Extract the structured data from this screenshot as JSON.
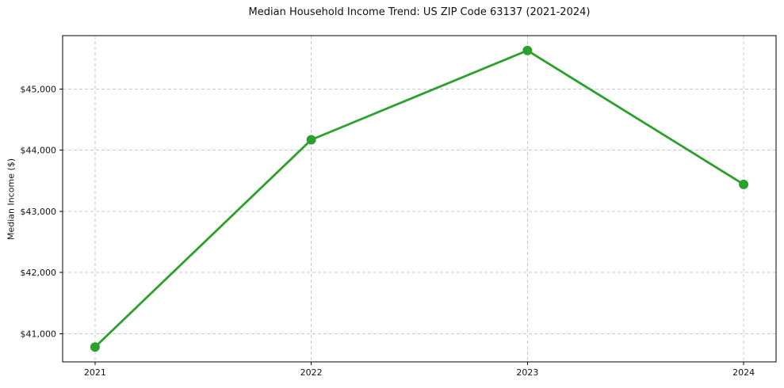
{
  "chart_data": {
    "type": "line",
    "title": "Median Household Income Trend: US ZIP Code 63137 (2021-2024)",
    "xlabel": "",
    "ylabel": "Median Income ($)",
    "x": [
      2021,
      2022,
      2023,
      2024
    ],
    "categories": [
      "2021",
      "2022",
      "2023",
      "2024"
    ],
    "series": [
      {
        "name": "Median Household Income",
        "values": [
          40780,
          44170,
          45630,
          43440
        ]
      }
    ],
    "xtick_labels": [
      "2021",
      "2022",
      "2023",
      "2024"
    ],
    "yticks": [
      41000,
      42000,
      43000,
      44000,
      45000
    ],
    "ytick_labels": [
      "$41,000",
      "$42,000",
      "$43,000",
      "$44,000",
      "$45,000"
    ],
    "xlim": [
      2020.85,
      2024.15
    ],
    "ylim": [
      40537,
      45873
    ],
    "grid": true,
    "grid_style": "dashed",
    "grid_color": "#c9c9c9",
    "line_color": "#2ca02c",
    "marker": "circle",
    "legend": "none",
    "background_color": "#ffffff"
  }
}
